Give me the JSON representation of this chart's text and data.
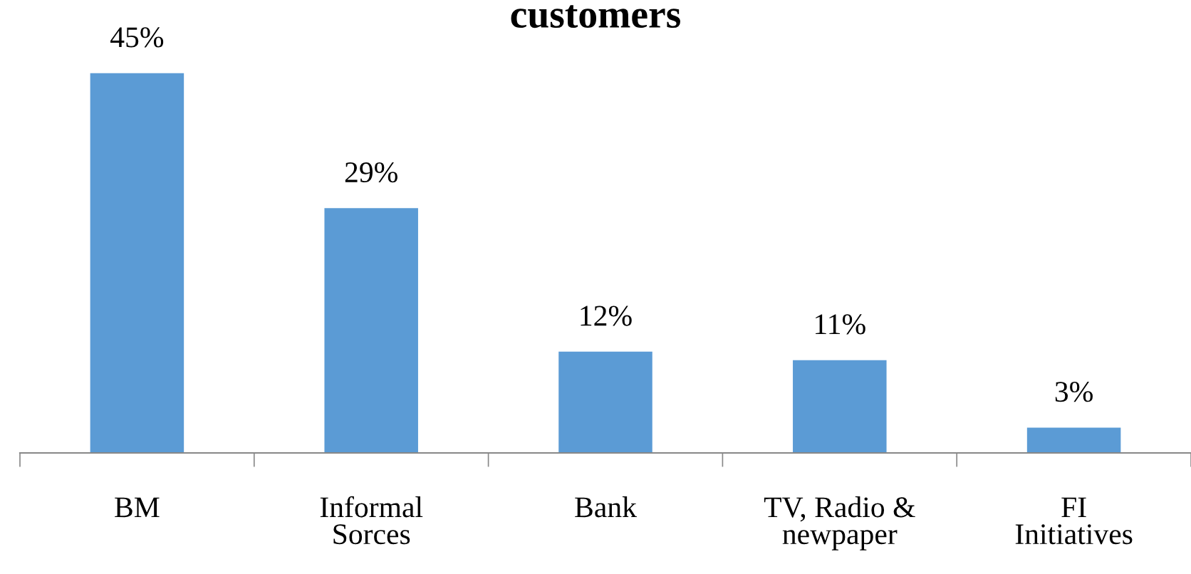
{
  "chart_data": {
    "type": "bar",
    "title": "customers",
    "categories": [
      "BM",
      "Informal\nSorces",
      "Bank",
      "TV, Radio &\nnewpaper",
      "FI\nInitiatives"
    ],
    "values": [
      45,
      29,
      12,
      11,
      3
    ],
    "value_labels": [
      "45%",
      "29%",
      "12%",
      "11%",
      "3%"
    ],
    "color": "#5b9bd5",
    "tick_labels": "x",
    "grid": false,
    "legend": false
  }
}
